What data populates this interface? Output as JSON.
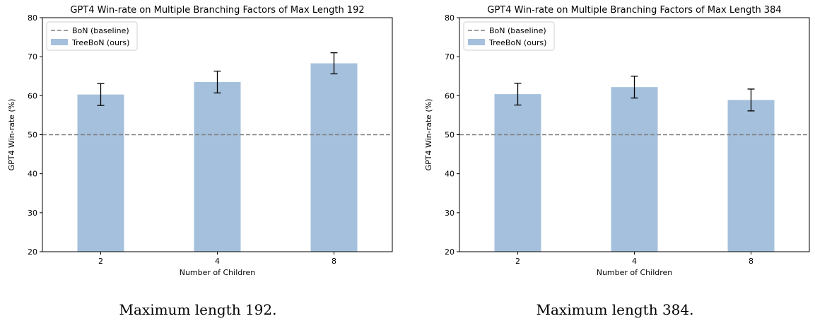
{
  "chart_data": [
    {
      "type": "bar",
      "title": "GPT4 Win-rate on Multiple Branching Factors of Max Length 192",
      "xlabel": "Number of Children",
      "ylabel": "GPT4 Win-rate (%)",
      "categories": [
        "2",
        "4",
        "8"
      ],
      "series": [
        {
          "name": "TreeBoN (ours)",
          "values": [
            60.3,
            63.5,
            68.3
          ],
          "errors": [
            2.8,
            2.8,
            2.7
          ],
          "color": "#a4c0dc"
        }
      ],
      "baseline": {
        "name": "BoN (baseline)",
        "value": 50,
        "color": "#808080"
      },
      "ylim": [
        20,
        80
      ],
      "yticks": [
        20,
        30,
        40,
        50,
        60,
        70,
        80
      ],
      "legend": "top-left",
      "grid": false,
      "caption": "Maximum length 192."
    },
    {
      "type": "bar",
      "title": "GPT4 Win-rate on Multiple Branching Factors of Max Length 384",
      "xlabel": "Number of Children",
      "ylabel": "GPT4 Win-rate (%)",
      "categories": [
        "2",
        "4",
        "8"
      ],
      "series": [
        {
          "name": "TreeBoN (ours)",
          "values": [
            60.4,
            62.2,
            58.9
          ],
          "errors": [
            2.8,
            2.8,
            2.8
          ],
          "color": "#a4c0dc"
        }
      ],
      "baseline": {
        "name": "BoN (baseline)",
        "value": 50,
        "color": "#808080"
      },
      "ylim": [
        20,
        80
      ],
      "yticks": [
        20,
        30,
        40,
        50,
        60,
        70,
        80
      ],
      "legend": "top-left",
      "grid": false,
      "caption": "Maximum length 384."
    }
  ]
}
